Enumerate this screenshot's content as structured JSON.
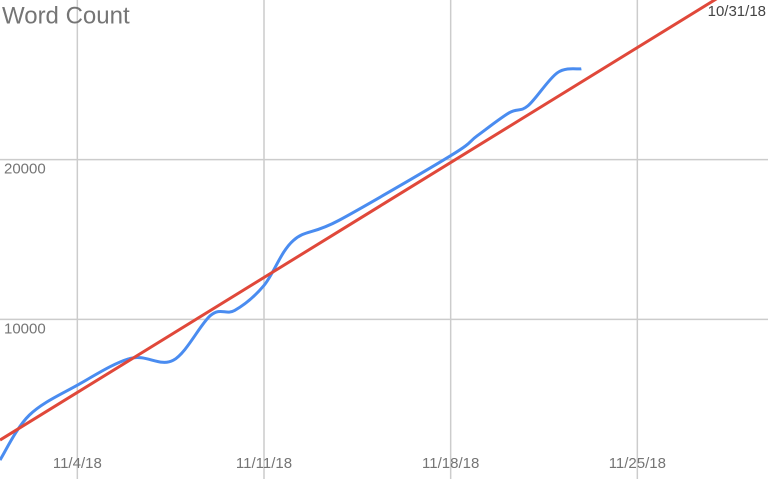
{
  "chart_data": {
    "type": "line",
    "title": "Word Count",
    "annotation": "10/31/18",
    "xlim": [
      1.1,
      29.9
    ],
    "ylim": [
      0,
      30000
    ],
    "xticks": [
      {
        "value": 4,
        "label": "11/4/18"
      },
      {
        "value": 11,
        "label": "11/11/18"
      },
      {
        "value": 18,
        "label": "11/18/18"
      },
      {
        "value": 25,
        "label": "11/25/18"
      }
    ],
    "yticks": [
      10000,
      20000
    ],
    "grid": true,
    "series": [
      {
        "color": "#4a8cf0",
        "x": [
          1.1,
          2.2,
          4,
          6,
          7.6,
          9,
          9.9,
          11,
          12.1,
          13.8,
          18,
          19,
          20.2,
          20.9,
          22,
          22.9
        ],
        "values": [
          1190,
          4000,
          5875,
          7560,
          7440,
          10250,
          10560,
          12125,
          14940,
          16190,
          20250,
          21500,
          22940,
          23375,
          25440,
          25690
        ]
      },
      {
        "color": "#e0483a",
        "x": [
          1.1,
          29.9
        ],
        "values": [
          2440,
          32060
        ]
      }
    ]
  }
}
